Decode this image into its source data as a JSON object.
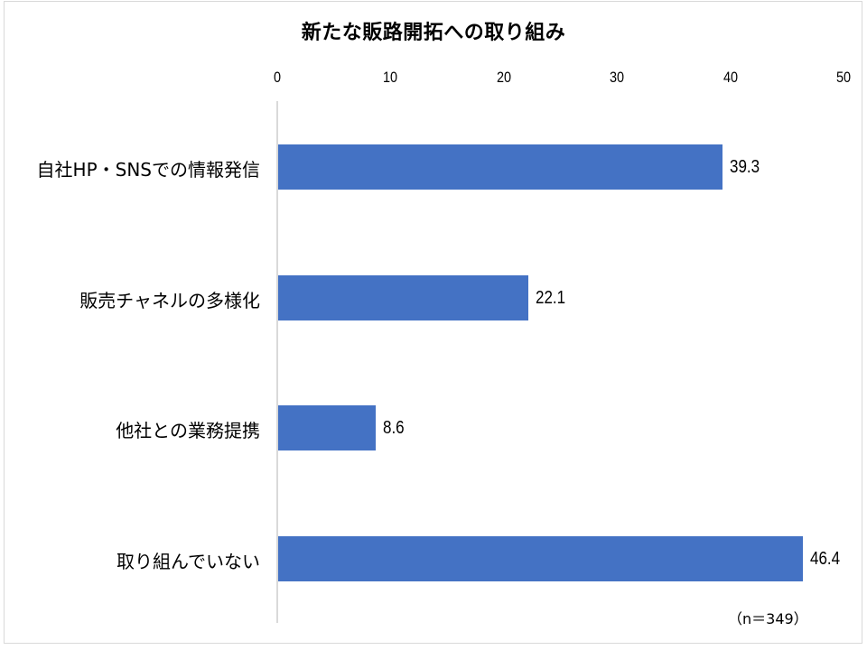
{
  "chart_data": {
    "type": "bar",
    "orientation": "horizontal",
    "title": "新たな販路開拓への取り組み",
    "categories": [
      "自社HP・SNSでの情報発信",
      "販売チャネルの多様化",
      "他社との業務提携",
      "取り組んでいない"
    ],
    "values": [
      39.3,
      22.1,
      8.6,
      46.4
    ],
    "data_labels": [
      "39.3",
      "22.1",
      "8.6",
      "46.4"
    ],
    "xlabel": "",
    "ylabel": "",
    "xlim": [
      0,
      50
    ],
    "x_ticks": [
      "0",
      "10",
      "20",
      "30",
      "40",
      "50"
    ],
    "x_axis_position": "top",
    "grid": false,
    "legend": null,
    "bar_color": "#4472c4",
    "annotation": "（n＝349）"
  }
}
